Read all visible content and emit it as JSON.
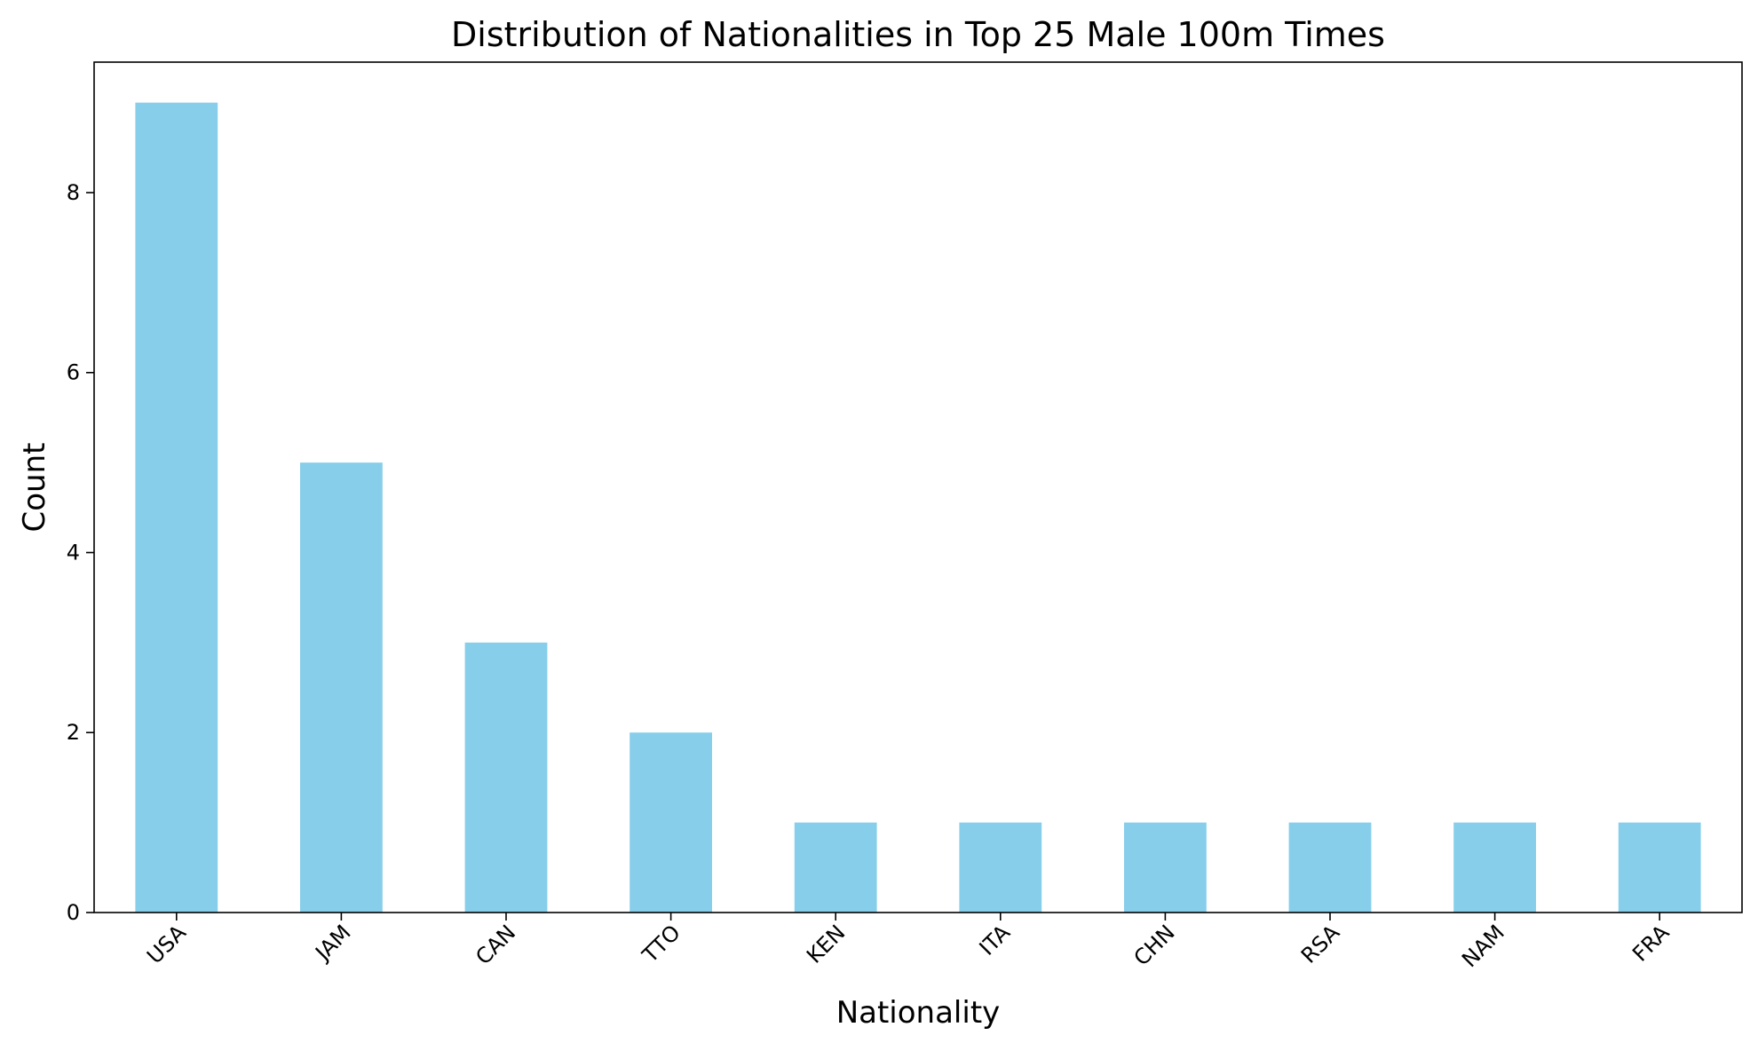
{
  "chart_data": {
    "type": "bar",
    "title": "Distribution of Nationalities in Top 25 Male 100m Times",
    "xlabel": "Nationality",
    "ylabel": "Count",
    "categories": [
      "USA",
      "JAM",
      "CAN",
      "TTO",
      "KEN",
      "ITA",
      "CHN",
      "RSA",
      "NAM",
      "FRA"
    ],
    "values": [
      9,
      5,
      3,
      2,
      1,
      1,
      1,
      1,
      1,
      1
    ],
    "ylim": [
      0,
      9.45
    ],
    "yticks": [
      0,
      2,
      4,
      6,
      8
    ],
    "grid": false,
    "legend": "none",
    "bar_color": "#87CEEB",
    "tick_label_rotation": 45
  }
}
